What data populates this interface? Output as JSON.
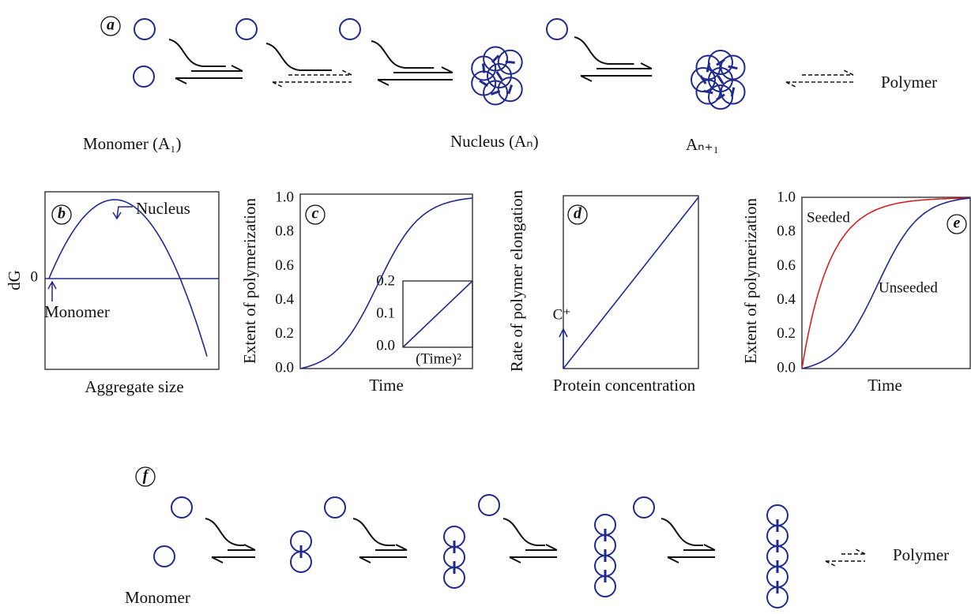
{
  "panel_a": {
    "label": "a",
    "product": "Polymer",
    "monomer_label": "Monomer (A₁)",
    "nucleus_label": "Nucleus (Aₙ)",
    "next_label": "Aₙ₊₁"
  },
  "panel_b": {
    "label": "b",
    "y_axis": "dG",
    "zero": "0",
    "peak": "Nucleus",
    "start": "Monomer",
    "x_axis": "Aggregate size"
  },
  "panel_c": {
    "label": "c",
    "y_axis": "Extent of polymerization",
    "y_ticks": [
      "0.0",
      "0.2",
      "0.4",
      "0.6",
      "0.8",
      "1.0"
    ],
    "x_axis": "Time",
    "inset_ticks": [
      "0.0",
      "0.1",
      "0.2"
    ],
    "inset_x_axis": "(Time)²"
  },
  "panel_d": {
    "label": "d",
    "y_axis": "Rate of polymer elongation",
    "threshold": "C⁺",
    "x_axis": "Protein concentration"
  },
  "panel_e": {
    "label": "e",
    "y_axis": "Extent of polymerization",
    "y_ticks": [
      "0.0",
      "0.2",
      "0.4",
      "0.6",
      "0.8",
      "1.0"
    ],
    "curves": [
      "Seeded",
      "Unseeded"
    ],
    "x_axis": "Time"
  },
  "panel_f": {
    "label": "f",
    "monomer_label": "Monomer",
    "product": "Polymer"
  }
}
